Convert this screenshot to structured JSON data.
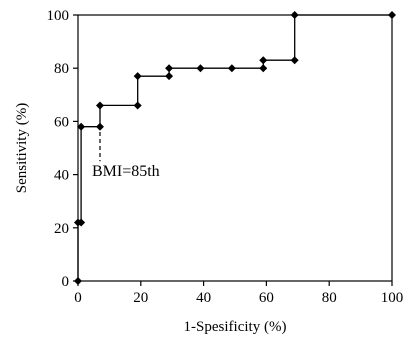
{
  "chart_data": {
    "type": "line",
    "title": "",
    "xlabel": "1-Spesificity (%)",
    "ylabel": "Sensitivity (%)",
    "xlim": [
      0,
      100
    ],
    "ylim": [
      0,
      100
    ],
    "xticks": [
      0,
      20,
      40,
      60,
      80,
      100
    ],
    "yticks": [
      0,
      20,
      40,
      60,
      80,
      100
    ],
    "grid": false,
    "series": [
      {
        "step": true,
        "marker": "diamond",
        "color": "#000000",
        "points": [
          {
            "x": 0,
            "y": 0
          },
          {
            "x": 0,
            "y": 22
          },
          {
            "x": 1,
            "y": 22
          },
          {
            "x": 1,
            "y": 58
          },
          {
            "x": 7,
            "y": 58
          },
          {
            "x": 7,
            "y": 66
          },
          {
            "x": 19,
            "y": 66
          },
          {
            "x": 19,
            "y": 77
          },
          {
            "x": 29,
            "y": 77
          },
          {
            "x": 29,
            "y": 80
          },
          {
            "x": 39,
            "y": 80
          },
          {
            "x": 49,
            "y": 80
          },
          {
            "x": 59,
            "y": 80
          },
          {
            "x": 59,
            "y": 83
          },
          {
            "x": 69,
            "y": 83
          },
          {
            "x": 69,
            "y": 100
          },
          {
            "x": 100,
            "y": 100
          }
        ]
      }
    ],
    "annotations": [
      {
        "text": "BMI=85th",
        "x": 7,
        "y": 47
      }
    ]
  }
}
